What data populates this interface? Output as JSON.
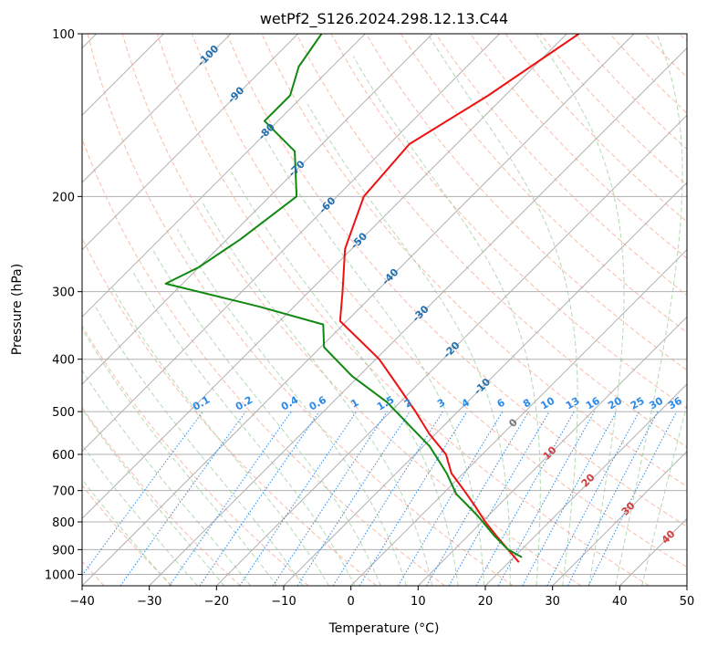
{
  "chart_data": {
    "type": "line",
    "title": "wetPf2_S126.2024.298.12.13.C44",
    "xlabel": "Temperature (°C)",
    "ylabel": "Pressure (hPa)",
    "xlim": [
      -40,
      50
    ],
    "ylim": [
      1050,
      100
    ],
    "y_scale": "log",
    "grid": true,
    "x_ticks": [
      -40,
      -30,
      -20,
      -10,
      0,
      10,
      20,
      30,
      40,
      50
    ],
    "y_ticks": [
      1000,
      900,
      800,
      700,
      600,
      500,
      400,
      300,
      200,
      100
    ],
    "skew": 45,
    "isotherm_labels": [
      -100,
      -90,
      -80,
      -70,
      -60,
      -50,
      -40,
      -30,
      -20,
      -10
    ],
    "mixing_ratio_labels": [
      "0.1",
      "0.2",
      "0.4",
      "0.6",
      "1",
      "1.5",
      "2",
      "3",
      "4",
      "6",
      "8",
      "10",
      "13",
      "16",
      "20",
      "25",
      "30",
      "36"
    ],
    "mixing_ratio_values": [
      0.1,
      0.2,
      0.4,
      0.6,
      1,
      1.5,
      2,
      3,
      4,
      6,
      8,
      10,
      13,
      16,
      20,
      25,
      30,
      36
    ],
    "moist_adiabat_labels": [
      "0",
      "10",
      "20",
      "30",
      "40"
    ],
    "colors": {
      "temperature": "#ee1111",
      "dewpoint": "#118811",
      "isotherm_label": "#1f6fb0",
      "mixing_ratio": "#2a8ae8",
      "dry_adiabat": "#f7a58c",
      "moist_adiabat": "#9fd19f",
      "grid": "#b0b0b0"
    },
    "series": [
      {
        "points": [
          {
            "p": 100,
            "t": -48.2
          },
          {
            "p": 130,
            "t": -52.5
          },
          {
            "p": 160,
            "t": -57.0
          },
          {
            "p": 200,
            "t": -56.0
          },
          {
            "p": 250,
            "t": -51.0
          },
          {
            "p": 300,
            "t": -45.0
          },
          {
            "p": 340,
            "t": -41.0
          },
          {
            "p": 370,
            "t": -35.0
          },
          {
            "p": 400,
            "t": -29.5
          },
          {
            "p": 450,
            "t": -22.5
          },
          {
            "p": 500,
            "t": -16.3
          },
          {
            "p": 550,
            "t": -10.9
          },
          {
            "p": 600,
            "t": -5.4
          },
          {
            "p": 650,
            "t": -1.8
          },
          {
            "p": 700,
            "t": 2.7
          },
          {
            "p": 750,
            "t": 6.8
          },
          {
            "p": 800,
            "t": 10.5
          },
          {
            "p": 850,
            "t": 14.3
          },
          {
            "p": 900,
            "t": 18.0
          },
          {
            "p": 950,
            "t": 21.5
          }
        ]
      },
      {
        "points": [
          {
            "p": 100,
            "t": -86.5
          },
          {
            "p": 115,
            "t": -85.0
          },
          {
            "p": 130,
            "t": -82.0
          },
          {
            "p": 145,
            "t": -82.0
          },
          {
            "p": 165,
            "t": -73.0
          },
          {
            "p": 200,
            "t": -66.0
          },
          {
            "p": 240,
            "t": -68.0
          },
          {
            "p": 270,
            "t": -70.0
          },
          {
            "p": 290,
            "t": -72.5
          },
          {
            "p": 320,
            "t": -55.0
          },
          {
            "p": 345,
            "t": -43.0
          },
          {
            "p": 380,
            "t": -39.5
          },
          {
            "p": 430,
            "t": -31.0
          },
          {
            "p": 480,
            "t": -22.0
          },
          {
            "p": 520,
            "t": -16.5
          },
          {
            "p": 580,
            "t": -9.0
          },
          {
            "p": 650,
            "t": -2.5
          },
          {
            "p": 710,
            "t": 2.0
          },
          {
            "p": 780,
            "t": 8.5
          },
          {
            "p": 850,
            "t": 14.0
          },
          {
            "p": 900,
            "t": 18.0
          },
          {
            "p": 930,
            "t": 21.2
          }
        ]
      }
    ]
  }
}
